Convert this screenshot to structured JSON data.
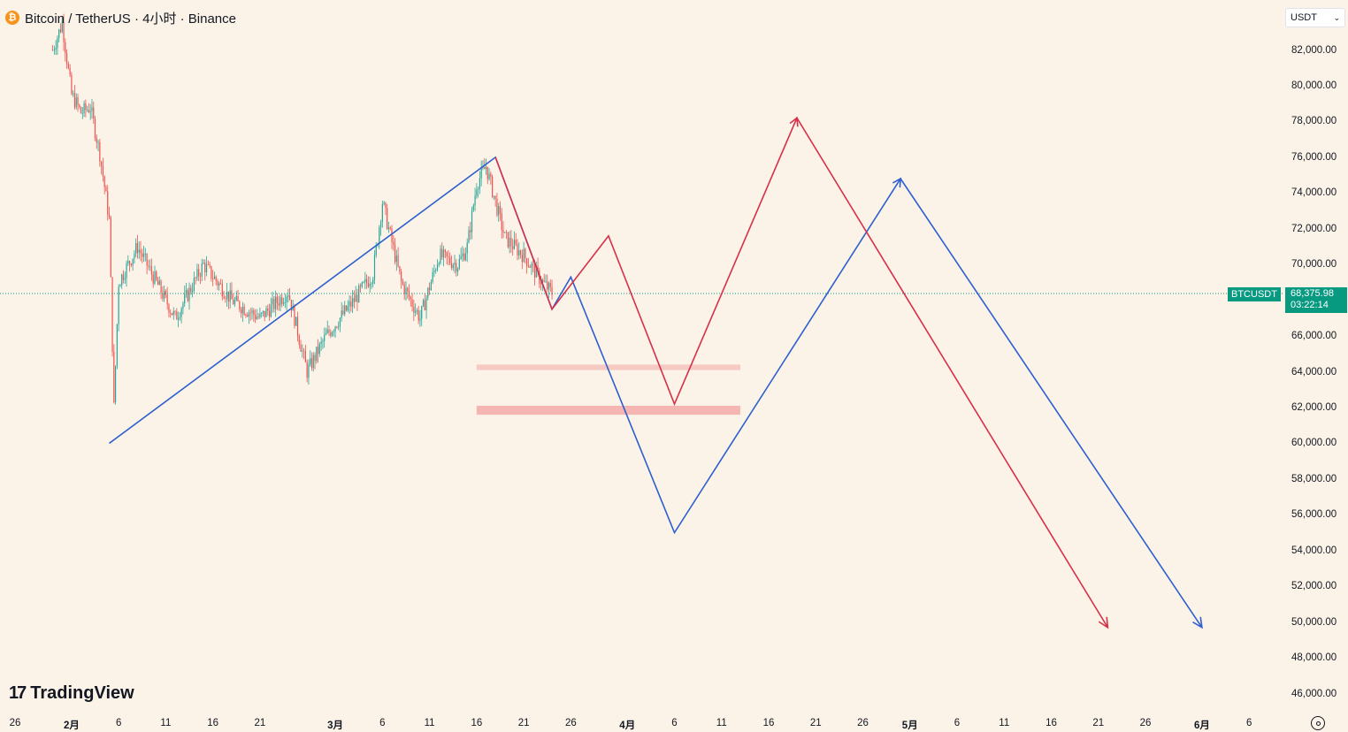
{
  "header": {
    "icon": "bitcoin-icon",
    "title": "Bitcoin / TetherUS · 4小时 · Binance"
  },
  "currency_select": {
    "value": "USDT"
  },
  "price_label": {
    "symbol": "BTCUSDT",
    "price": "68,375.98",
    "countdown": "03:22:14"
  },
  "logo": {
    "text": "TradingView"
  },
  "colors": {
    "up": "#26a69a",
    "down": "#ef5350",
    "red_path": "#d6304a",
    "blue_path": "#2d5fcf",
    "zone": "#f4a6a6",
    "label_bg": "#089981"
  },
  "chart_data": {
    "type": "line",
    "instrument": "BTCUSDT",
    "timeframe": "4小时",
    "ylim": [
      45000,
      83500
    ],
    "y_ticks": [
      "82,000.00",
      "80,000.00",
      "78,000.00",
      "76,000.00",
      "74,000.00",
      "72,000.00",
      "70,000.00",
      "66,000.00",
      "64,000.00",
      "62,000.00",
      "60,000.00",
      "58,000.00",
      "56,000.00",
      "54,000.00",
      "52,000.00",
      "50,000.00",
      "48,000.00",
      "46,000.00"
    ],
    "x_ticks": [
      "26",
      "2月",
      "6",
      "11",
      "16",
      "21",
      "3月",
      "6",
      "11",
      "16",
      "21",
      "26",
      "4月",
      "6",
      "11",
      "16",
      "21",
      "26",
      "5月",
      "6",
      "11",
      "16",
      "21",
      "26",
      "6月",
      "6"
    ],
    "x_tick_bold": [
      "2月",
      "3月",
      "4月",
      "5月",
      "6月"
    ],
    "x_tick_dates": [
      "2026-01-26",
      "2026-02-01",
      "2026-02-06",
      "2026-02-11",
      "2026-02-16",
      "2026-02-21",
      "2026-03-01",
      "2026-03-06",
      "2026-03-11",
      "2026-03-16",
      "2026-03-21",
      "2026-03-26",
      "2026-04-01",
      "2026-04-06",
      "2026-04-11",
      "2026-04-16",
      "2026-04-21",
      "2026-04-26",
      "2026-05-01",
      "2026-05-06",
      "2026-05-11",
      "2026-05-16",
      "2026-05-21",
      "2026-05-26",
      "2026-06-01",
      "2026-06-06"
    ],
    "current_price": 68375.98,
    "price_history_anchors": [
      {
        "date": "2026-01-30",
        "value": 82000
      },
      {
        "date": "2026-01-31",
        "value": 83500
      },
      {
        "date": "2026-02-01",
        "value": 79500
      },
      {
        "date": "2026-02-02",
        "value": 78500
      },
      {
        "date": "2026-02-03",
        "value": 78800
      },
      {
        "date": "2026-02-04",
        "value": 76200
      },
      {
        "date": "2026-02-05",
        "value": 72500
      },
      {
        "date": "2026-02-05T12:00",
        "value": 62000
      },
      {
        "date": "2026-02-06",
        "value": 69000
      },
      {
        "date": "2026-02-08",
        "value": 71000
      },
      {
        "date": "2026-02-10",
        "value": 69000
      },
      {
        "date": "2026-02-12",
        "value": 67000
      },
      {
        "date": "2026-02-15",
        "value": 70000
      },
      {
        "date": "2026-02-18",
        "value": 68000
      },
      {
        "date": "2026-02-21",
        "value": 67000
      },
      {
        "date": "2026-02-24",
        "value": 68500
      },
      {
        "date": "2026-02-26",
        "value": 64000
      },
      {
        "date": "2026-02-28",
        "value": 66000
      },
      {
        "date": "2026-03-03",
        "value": 68000
      },
      {
        "date": "2026-03-05",
        "value": 69500
      },
      {
        "date": "2026-03-06",
        "value": 73500
      },
      {
        "date": "2026-03-08",
        "value": 69000
      },
      {
        "date": "2026-03-10",
        "value": 67000
      },
      {
        "date": "2026-03-12",
        "value": 70500
      },
      {
        "date": "2026-03-14",
        "value": 70000
      },
      {
        "date": "2026-03-15",
        "value": 71000
      },
      {
        "date": "2026-03-16",
        "value": 74500
      },
      {
        "date": "2026-03-17",
        "value": 75500
      },
      {
        "date": "2026-03-19",
        "value": 71500
      },
      {
        "date": "2026-03-21",
        "value": 70500
      },
      {
        "date": "2026-03-23",
        "value": 69000
      },
      {
        "date": "2026-03-24",
        "value": 68400
      }
    ],
    "zones": [
      {
        "from": "2026-03-16",
        "to": "2026-04-13",
        "y": [
          64100,
          64400
        ]
      },
      {
        "from": "2026-03-16",
        "to": "2026-04-13",
        "y": [
          61600,
          62100
        ]
      }
    ],
    "paths": [
      {
        "color_key": "blue_path",
        "points": [
          {
            "date": "2026-02-05",
            "value": 60000
          },
          {
            "date": "2026-03-18",
            "value": 76000
          },
          {
            "date": "2026-03-24",
            "value": 67500
          },
          {
            "date": "2026-03-26",
            "value": 69300
          },
          {
            "date": "2026-04-06",
            "value": 55000
          },
          {
            "date": "2026-04-30",
            "value": 74800
          },
          {
            "date": "2026-06-01",
            "value": 49700
          }
        ]
      },
      {
        "color_key": "red_path",
        "points": [
          {
            "date": "2026-03-18",
            "value": 76000
          },
          {
            "date": "2026-03-24",
            "value": 67500
          },
          {
            "date": "2026-03-30",
            "value": 71600
          },
          {
            "date": "2026-04-06",
            "value": 62200
          },
          {
            "date": "2026-04-19",
            "value": 78200
          },
          {
            "date": "2026-05-22",
            "value": 49700
          }
        ]
      }
    ]
  }
}
